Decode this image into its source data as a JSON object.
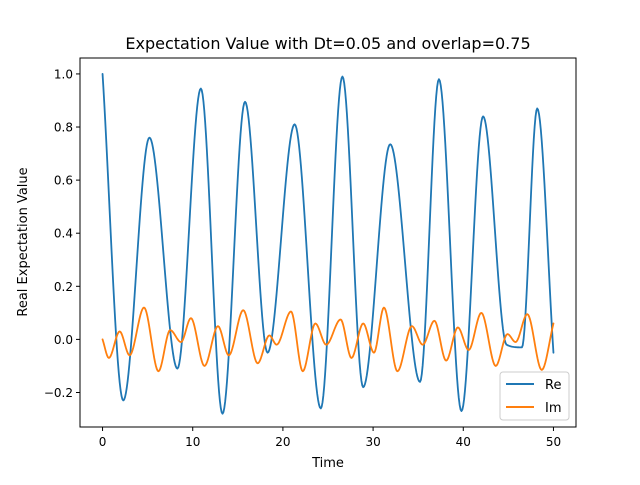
{
  "chart_data": {
    "type": "line",
    "title": "Expectation Value with Dt=0.05 and overlap=0.75",
    "xlabel": "Time",
    "ylabel": "Real Expectation Value",
    "xlim": [
      -2.5,
      52.5
    ],
    "ylim": [
      -0.33,
      1.06
    ],
    "xticks": [
      0,
      10,
      20,
      30,
      40,
      50
    ],
    "xtick_labels": [
      "0",
      "10",
      "20",
      "30",
      "40",
      "50"
    ],
    "yticks": [
      -0.2,
      0.0,
      0.2,
      0.4,
      0.6,
      0.8,
      1.0
    ],
    "ytick_labels": [
      "−0.2",
      "0.0",
      "0.2",
      "0.4",
      "0.6",
      "0.8",
      "1.0"
    ],
    "grid": false,
    "legend_position": "lower-right",
    "series": [
      {
        "name": "Re",
        "color": "#1f77b4",
        "points": [
          [
            0.0,
            1.0
          ],
          [
            2.3,
            -0.23
          ],
          [
            5.2,
            0.76
          ],
          [
            8.3,
            -0.11
          ],
          [
            10.9,
            0.945
          ],
          [
            13.3,
            -0.28
          ],
          [
            15.8,
            0.895
          ],
          [
            18.3,
            -0.05
          ],
          [
            21.3,
            0.81
          ],
          [
            24.2,
            -0.26
          ],
          [
            26.6,
            0.99
          ],
          [
            28.9,
            -0.18
          ],
          [
            31.9,
            0.735
          ],
          [
            35.2,
            -0.16
          ],
          [
            37.3,
            0.98
          ],
          [
            39.8,
            -0.27
          ],
          [
            42.2,
            0.84
          ],
          [
            44.8,
            -0.02
          ],
          [
            46.5,
            -0.03
          ],
          [
            48.2,
            0.87
          ],
          [
            50.0,
            -0.05
          ]
        ]
      },
      {
        "name": "Im",
        "color": "#ff7f0e",
        "points": [
          [
            0.0,
            0.0
          ],
          [
            0.7,
            -0.07
          ],
          [
            1.9,
            0.03
          ],
          [
            3.0,
            -0.06
          ],
          [
            4.6,
            0.12
          ],
          [
            6.2,
            -0.12
          ],
          [
            7.5,
            0.035
          ],
          [
            8.7,
            -0.01
          ],
          [
            9.8,
            0.08
          ],
          [
            11.3,
            -0.1
          ],
          [
            12.8,
            0.05
          ],
          [
            14.0,
            -0.06
          ],
          [
            15.6,
            0.11
          ],
          [
            17.2,
            -0.09
          ],
          [
            18.5,
            0.015
          ],
          [
            19.3,
            -0.02
          ],
          [
            20.9,
            0.105
          ],
          [
            22.2,
            -0.12
          ],
          [
            23.6,
            0.06
          ],
          [
            24.8,
            -0.02
          ],
          [
            26.4,
            0.075
          ],
          [
            27.6,
            -0.07
          ],
          [
            28.9,
            0.06
          ],
          [
            30.1,
            -0.05
          ],
          [
            31.2,
            0.12
          ],
          [
            32.7,
            -0.12
          ],
          [
            34.3,
            0.05
          ],
          [
            35.5,
            -0.02
          ],
          [
            36.8,
            0.07
          ],
          [
            38.1,
            -0.08
          ],
          [
            39.4,
            0.045
          ],
          [
            40.6,
            -0.04
          ],
          [
            42.0,
            0.1
          ],
          [
            43.6,
            -0.1
          ],
          [
            44.9,
            0.02
          ],
          [
            45.8,
            -0.01
          ],
          [
            47.1,
            0.095
          ],
          [
            48.7,
            -0.115
          ],
          [
            50.0,
            0.06
          ]
        ]
      }
    ]
  }
}
